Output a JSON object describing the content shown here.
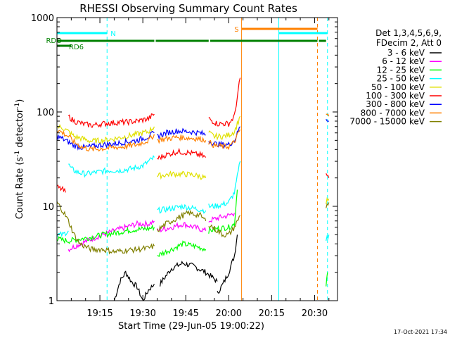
{
  "chart_data": {
    "type": "line",
    "title": "RHESSI Observing Summary Count Rates",
    "xlabel": "Start Time (29-Jun-05 19:00:22)",
    "ylabel_prefix": "Count Rate (s",
    "ylabel_sup1": "-1",
    "ylabel_mid": " detector",
    "ylabel_sup2": "-1",
    "ylabel_suffix": ")",
    "y_scale": "log",
    "ylim": [
      1,
      1000
    ],
    "xlim_minutes": [
      0,
      98
    ],
    "x_tick_labels": [
      {
        "label": "19:15",
        "t": 15
      },
      {
        "label": "19:30",
        "t": 30
      },
      {
        "label": "19:45",
        "t": 45
      },
      {
        "label": "20:00",
        "t": 60
      },
      {
        "label": "20:15",
        "t": 75
      },
      {
        "label": "20:30",
        "t": 90
      }
    ],
    "y_tick_labels": [
      {
        "label": "1",
        "v": 1
      },
      {
        "label": "10",
        "v": 10
      },
      {
        "label": "100",
        "v": 100
      },
      {
        "label": "1000",
        "v": 1000
      }
    ],
    "legend_placement": "right",
    "legend_header": [
      "Det 1,3,4,5,6,9,",
      "FDecim 2, Att 0"
    ],
    "footer_date": "17-Oct-2021 17:34",
    "flag_labels": {
      "night": "N",
      "saa": "S",
      "rdo": "RDO",
      "rd6": "RD6"
    },
    "flags": {
      "night": [
        [
          0,
          17.5
        ],
        [
          77.5,
          94.5
        ]
      ],
      "saa": [
        [
          64.5,
          91
        ]
      ],
      "rdo": [
        [
          0,
          34
        ],
        [
          34.5,
          53
        ],
        [
          53.5,
          91
        ],
        [
          91.5,
          94
        ]
      ],
      "rd6": [
        [
          0,
          5
        ]
      ]
    },
    "vertical_markers": [
      {
        "t": 0,
        "color": "#00ffff",
        "style": "solid"
      },
      {
        "t": 17.5,
        "color": "#00ffff",
        "style": "dash"
      },
      {
        "t": 64.5,
        "color": "#ff8000",
        "style": "solid"
      },
      {
        "t": 77.5,
        "color": "#00ffff",
        "style": "solid"
      },
      {
        "t": 91,
        "color": "#ff8000",
        "style": "dash"
      },
      {
        "t": 94.5,
        "color": "#00ffff",
        "style": "dash"
      }
    ],
    "series": [
      {
        "name": "3 - 6 keV",
        "color": "#000000",
        "segments": [
          {
            "t": [
              20,
              22,
              24,
              26,
              28,
              30,
              32,
              34
            ],
            "v": [
              1,
              1.6,
              2,
              1.6,
              1.4,
              1,
              1.3,
              1.5
            ]
          },
          {
            "t": [
              36,
              40,
              44,
              48,
              52,
              56
            ],
            "v": [
              1.5,
              2.2,
              2.5,
              2.3,
              2,
              1.6
            ]
          },
          {
            "t": [
              56,
              58,
              60,
              62,
              63
            ],
            "v": [
              1.2,
              1.5,
              2,
              3,
              5
            ]
          }
        ]
      },
      {
        "name": "6 - 12 keV",
        "color": "#ff00ff",
        "segments": [
          {
            "t": [
              4,
              8,
              12,
              16,
              20,
              24,
              28,
              32,
              34
            ],
            "v": [
              3.5,
              4,
              4.5,
              5,
              5.5,
              6,
              6.5,
              6.5,
              7
            ]
          },
          {
            "t": [
              35,
              40,
              44,
              48,
              52
            ],
            "v": [
              5.5,
              6,
              6.5,
              6,
              5.5
            ]
          },
          {
            "t": [
              53,
              56,
              60,
              62
            ],
            "v": [
              7,
              7.5,
              8,
              8.5
            ]
          }
        ]
      },
      {
        "name": "12 - 25 keV",
        "color": "#00ff00",
        "segments": [
          {
            "t": [
              0,
              4,
              8,
              12,
              16,
              20,
              24,
              28,
              32,
              34
            ],
            "v": [
              4.5,
              4.3,
              4.5,
              4.7,
              5,
              5.2,
              5.5,
              5.7,
              5.8,
              6
            ]
          },
          {
            "t": [
              35,
              40,
              44,
              48,
              52
            ],
            "v": [
              3,
              3.5,
              4,
              3.8,
              3.5
            ]
          },
          {
            "t": [
              53,
              56,
              60,
              62,
              63
            ],
            "v": [
              5.5,
              5.8,
              6,
              6.5,
              15
            ]
          },
          {
            "t": [
              94,
              94.5
            ],
            "v": [
              1.5,
              2
            ]
          }
        ]
      },
      {
        "name": "25 - 50 keV",
        "color": "#00ffff",
        "segments": [
          {
            "t": [
              0,
              2,
              4
            ],
            "v": [
              5,
              5,
              5.5
            ]
          },
          {
            "t": [
              4,
              5,
              7,
              10,
              14,
              18,
              22,
              26,
              30,
              34
            ],
            "v": [
              28,
              25,
              23,
              22,
              23,
              24,
              24,
              25,
              27,
              33
            ]
          },
          {
            "t": [
              35,
              40,
              44,
              48,
              52
            ],
            "v": [
              9,
              9.5,
              10,
              9.5,
              9
            ]
          },
          {
            "t": [
              53,
              55,
              58,
              60,
              62,
              64
            ],
            "v": [
              10,
              10,
              10.5,
              11,
              14,
              30
            ]
          },
          {
            "t": [
              94,
              95
            ],
            "v": [
              4.5,
              5
            ]
          }
        ]
      },
      {
        "name": "50 - 100 keV",
        "color": "#e0e000",
        "segments": [
          {
            "t": [
              0,
              2,
              4,
              6,
              9,
              12,
              16,
              20,
              24,
              28,
              32,
              34
            ],
            "v": [
              70,
              68,
              62,
              55,
              52,
              49,
              50,
              52,
              55,
              58,
              62,
              70
            ]
          },
          {
            "t": [
              35,
              40,
              44,
              48,
              52
            ],
            "v": [
              21,
              22,
              22,
              21.5,
              20
            ]
          },
          {
            "t": [
              53,
              55,
              58,
              60,
              62,
              64
            ],
            "v": [
              60,
              55,
              55,
              57,
              62,
              90
            ]
          },
          {
            "t": [
              94,
              95
            ],
            "v": [
              11,
              12
            ]
          }
        ]
      },
      {
        "name": "100 - 300 keV",
        "color": "#ff0000",
        "segments": [
          {
            "t": [
              0,
              2,
              3
            ],
            "v": [
              16,
              15,
              14
            ]
          },
          {
            "t": [
              4,
              6,
              9,
              12,
              16,
              20,
              24,
              28,
              32,
              34
            ],
            "v": [
              90,
              80,
              75,
              72,
              75,
              77,
              78,
              80,
              85,
              95
            ]
          },
          {
            "t": [
              35,
              38,
              42,
              46,
              50,
              52
            ],
            "v": [
              32,
              35,
              38,
              37,
              35,
              33
            ]
          },
          {
            "t": [
              53,
              56,
              60,
              62,
              64
            ],
            "v": [
              85,
              75,
              75,
              90,
              230
            ]
          },
          {
            "t": [
              94,
              95
            ],
            "v": [
              22,
              20
            ]
          }
        ]
      },
      {
        "name": "300 - 800 keV",
        "color": "#0000ff",
        "segments": [
          {
            "t": [
              0,
              2,
              4,
              6,
              9,
              12,
              16,
              20,
              24,
              28,
              32,
              34
            ],
            "v": [
              55,
              52,
              48,
              44,
              42,
              43,
              45,
              46,
              48,
              50,
              55,
              60
            ]
          },
          {
            "t": [
              35,
              38,
              42,
              46,
              50,
              52
            ],
            "v": [
              55,
              60,
              63,
              62,
              60,
              57
            ]
          },
          {
            "t": [
              53,
              55,
              58,
              60,
              62,
              64
            ],
            "v": [
              50,
              46,
              45,
              45,
              50,
              70
            ]
          },
          {
            "t": [
              94,
              95
            ],
            "v": [
              85,
              80
            ]
          }
        ]
      },
      {
        "name": "800 - 7000 keV",
        "color": "#ff8000",
        "segments": [
          {
            "t": [
              0,
              2,
              4,
              6,
              9,
              12,
              16,
              20,
              24,
              28,
              32,
              34
            ],
            "v": [
              65,
              60,
              55,
              48,
              42,
              40,
              41,
              42,
              43,
              45,
              50,
              58
            ]
          },
          {
            "t": [
              35,
              38,
              42,
              46,
              50,
              52
            ],
            "v": [
              50,
              52,
              54,
              53,
              52,
              50
            ]
          },
          {
            "t": [
              53,
              55,
              58,
              60,
              62,
              64
            ],
            "v": [
              48,
              44,
              43,
              43,
              48,
              65
            ]
          },
          {
            "t": [
              94,
              95
            ],
            "v": [
              95,
              90
            ]
          }
        ]
      },
      {
        "name": "7000 - 15000 keV",
        "color": "#808000",
        "segments": [
          {
            "t": [
              0,
              2,
              4,
              6,
              8,
              12,
              16,
              20,
              24,
              28,
              32,
              34
            ],
            "v": [
              11,
              9,
              7,
              5,
              4,
              3.5,
              3.5,
              3.3,
              3.4,
              3.5,
              3.6,
              3.8
            ]
          },
          {
            "t": [
              35,
              38,
              42,
              46,
              50,
              52
            ],
            "v": [
              5.5,
              6.5,
              7.5,
              8.5,
              8,
              7
            ]
          },
          {
            "t": [
              53,
              56,
              58,
              60,
              62,
              64
            ],
            "v": [
              6.5,
              5.5,
              5,
              5,
              6,
              8
            ]
          },
          {
            "t": [
              94,
              95
            ],
            "v": [
              10,
              11
            ]
          }
        ]
      }
    ]
  }
}
